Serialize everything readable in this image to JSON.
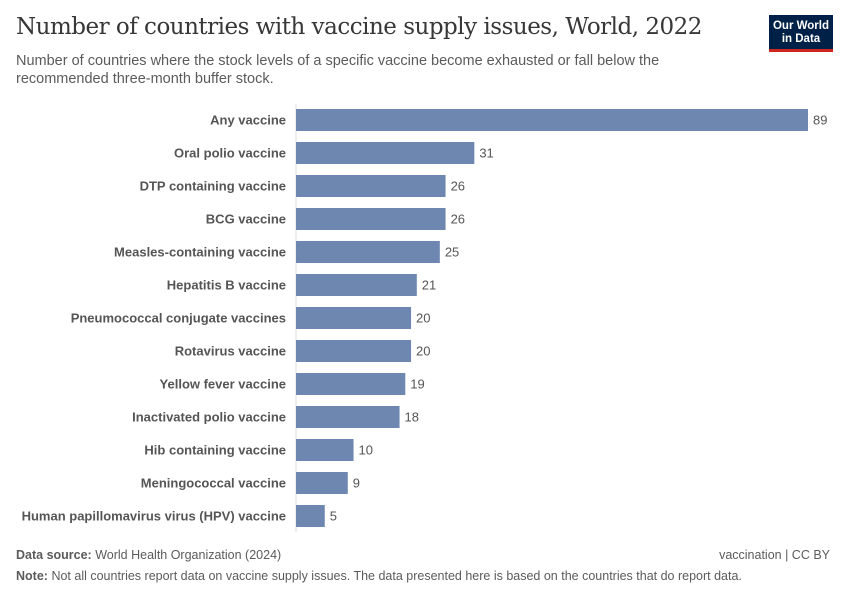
{
  "header": {
    "title": "Number of countries with vaccine supply issues, World, 2022",
    "subtitle": "Number of countries where the stock levels of a specific vaccine become exhausted or fall below the recommended three-month buffer stock.",
    "logo": "Our World in Data"
  },
  "chart_data": {
    "type": "bar",
    "orientation": "horizontal",
    "title": "Number of countries with vaccine supply issues, World, 2022",
    "categories": [
      "Any vaccine",
      "Oral polio vaccine",
      "DTP containing vaccine",
      "BCG vaccine",
      "Measles-containing vaccine",
      "Hepatitis B vaccine",
      "Pneumococcal conjugate vaccines",
      "Rotavirus vaccine",
      "Yellow fever vaccine",
      "Inactivated polio vaccine",
      "Hib containing vaccine",
      "Meningococcal vaccine",
      "Human papillomavirus virus (HPV) vaccine"
    ],
    "values": [
      89,
      31,
      26,
      26,
      25,
      21,
      20,
      20,
      19,
      18,
      10,
      9,
      5
    ],
    "xlim": [
      0,
      89
    ],
    "grid": false,
    "bar_color": "#6d87b0"
  },
  "footer": {
    "source_label": "Data source:",
    "source": "World Health Organization (2024)",
    "license": "vaccination | CC BY",
    "note_label": "Note:",
    "note": "Not all countries report data on vaccine supply issues. The data presented here is based on the countries that do report data."
  }
}
